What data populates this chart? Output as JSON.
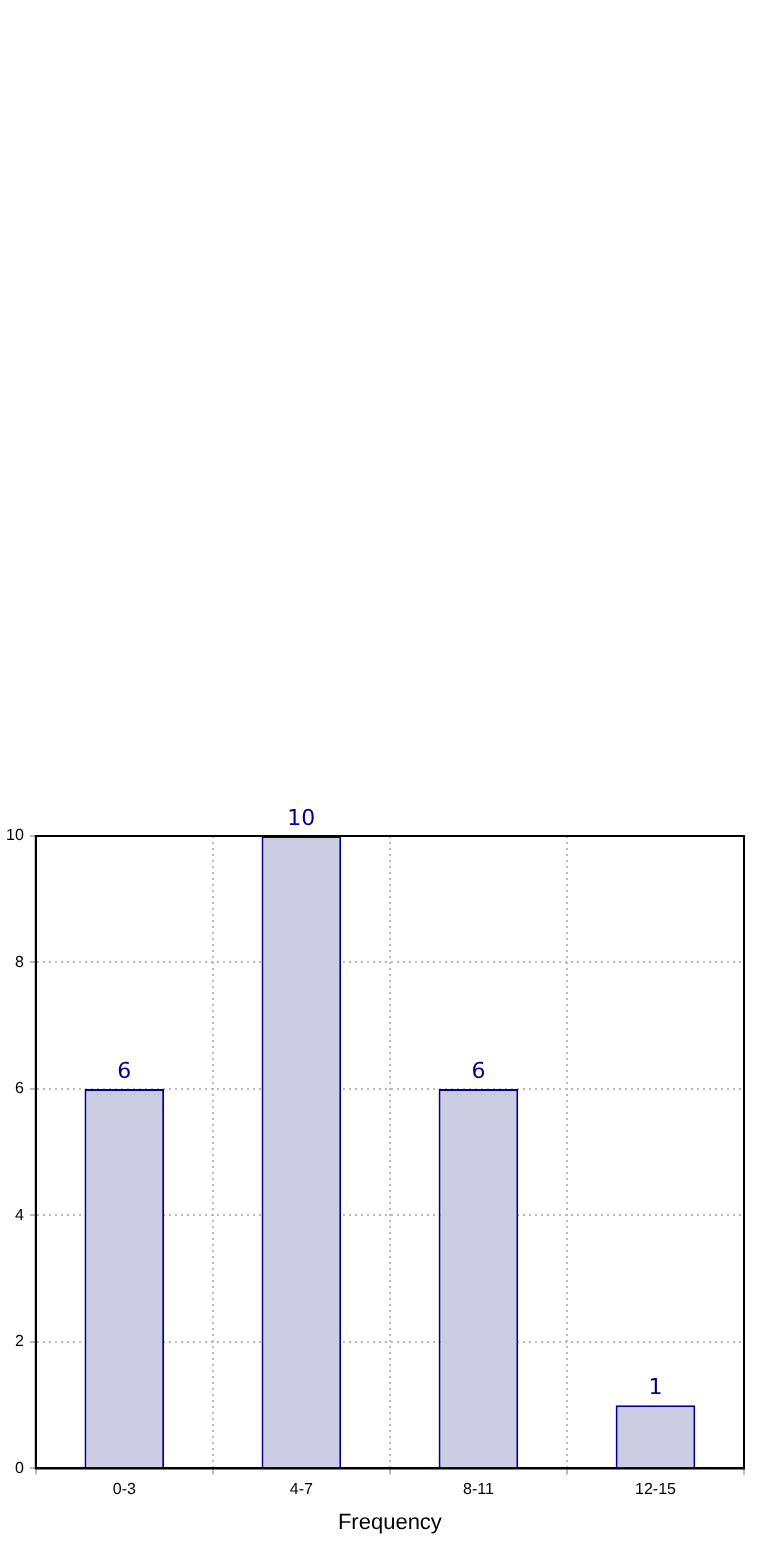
{
  "chart_data": {
    "type": "bar",
    "xlabel": "Frequency",
    "categories": [
      "0-3",
      "4-7",
      "8-11",
      "12-15"
    ],
    "values": [
      6,
      10,
      6,
      1
    ],
    "color": "#ccccE3",
    "ylim": [
      0,
      10
    ],
    "yticks": [
      0,
      2,
      4,
      6,
      8,
      10
    ],
    "grid": true,
    "data_labels": true,
    "legend": false
  }
}
